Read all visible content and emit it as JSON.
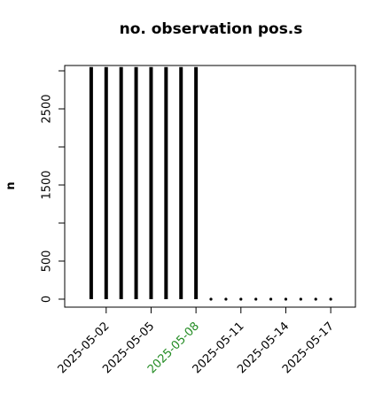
{
  "chart_data": {
    "type": "histlike",
    "title": "no. observation pos.s",
    "ylabel": "n",
    "x": [
      "2025-05-01",
      "2025-05-02",
      "2025-05-03",
      "2025-05-04",
      "2025-05-05",
      "2025-05-06",
      "2025-05-07",
      "2025-05-08",
      "2025-05-09",
      "2025-05-10",
      "2025-05-11",
      "2025-05-12",
      "2025-05-13",
      "2025-05-14",
      "2025-05-15",
      "2025-05-16",
      "2025-05-17"
    ],
    "values": [
      3050,
      3050,
      3050,
      3050,
      3050,
      3050,
      3050,
      3050,
      0,
      0,
      0,
      0,
      0,
      0,
      0,
      0,
      0
    ],
    "color": "#000000",
    "ylim": [
      -105,
      3070
    ],
    "yticks": [
      0,
      500,
      1500,
      2500
    ],
    "yminor_ticks": [
      1000,
      2000,
      3000
    ],
    "xticks": [
      "2025-05-02",
      "2025-05-05",
      "2025-05-08",
      "2025-05-11",
      "2025-05-14",
      "2025-05-17"
    ],
    "xtick_colors": [
      "#000000",
      "#000000",
      "#228b22",
      "#000000",
      "#000000",
      "#000000"
    ]
  }
}
